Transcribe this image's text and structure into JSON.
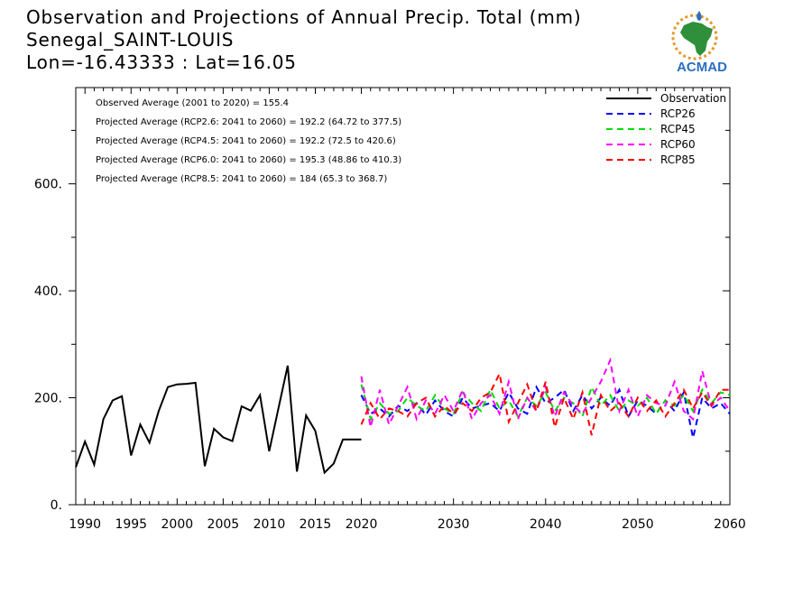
{
  "header": {
    "title_line1": "Observation and Projections of Annual Precip. Total (mm)",
    "title_line2": "Senegal_SAINT-LOUIS",
    "title_line3": "Lon=-16.43333 : Lat=16.05"
  },
  "logo": {
    "text": "ACMAD",
    "icon": "africa-map-icon"
  },
  "chart_data": {
    "type": "line",
    "xlim": [
      1989,
      2060
    ],
    "ylim": [
      0,
      780
    ],
    "xticks": [
      1990,
      1995,
      2000,
      2005,
      2010,
      2015,
      2020,
      2030,
      2040,
      2050,
      2060
    ],
    "yticks": [
      0,
      200,
      400,
      600
    ],
    "ytick_labels": [
      "0.",
      "200.",
      "400.",
      "600."
    ],
    "grid": false,
    "legend_position": "top-right",
    "annotations": [
      "Observed Average (2001 to 2020) = 155.4",
      "Projected Average (RCP2.6: 2041 to 2060) = 192.2 (64.72 to 377.5)",
      "Projected Average (RCP4.5: 2041 to 2060) = 192.2 (72.5 to 420.6)",
      "Projected Average (RCP6.0: 2041 to 2060) = 195.3 (48.86 to 410.3)",
      "Projected Average (RCP8.5: 2041 to 2060) = 184 (65.3 to 368.7)"
    ],
    "series": [
      {
        "name": "Observation",
        "color": "#000000",
        "dash": "solid",
        "x": [
          1989,
          1990,
          1991,
          1992,
          1993,
          1994,
          1995,
          1996,
          1997,
          1998,
          1999,
          2000,
          2001,
          2002,
          2003,
          2004,
          2005,
          2006,
          2007,
          2008,
          2009,
          2010,
          2011,
          2012,
          2013,
          2014,
          2015,
          2016,
          2017,
          2018,
          2019,
          2020
        ],
        "values": [
          70,
          118,
          75,
          160,
          195,
          203,
          92,
          150,
          116,
          175,
          220,
          225,
          226,
          228,
          72,
          142,
          126,
          119,
          184,
          176,
          205,
          100,
          180,
          260,
          62,
          167,
          138,
          60,
          77,
          122,
          122,
          122
        ]
      },
      {
        "name": "RCP26",
        "color": "#0000ff",
        "dash": "dashed",
        "x": [
          2020,
          2021,
          2022,
          2023,
          2024,
          2025,
          2026,
          2027,
          2028,
          2029,
          2030,
          2031,
          2032,
          2033,
          2034,
          2035,
          2036,
          2037,
          2038,
          2039,
          2040,
          2041,
          2042,
          2043,
          2044,
          2045,
          2046,
          2047,
          2048,
          2049,
          2050,
          2051,
          2052,
          2053,
          2054,
          2055,
          2056,
          2057,
          2058,
          2059,
          2060
        ],
        "values": [
          205,
          170,
          180,
          165,
          185,
          175,
          190,
          168,
          195,
          175,
          165,
          200,
          180,
          185,
          190,
          175,
          210,
          180,
          170,
          220,
          190,
          200,
          215,
          175,
          205,
          180,
          200,
          185,
          215,
          165,
          195,
          185,
          170,
          195,
          175,
          210,
          125,
          200,
          180,
          190,
          170
        ]
      },
      {
        "name": "RCP45",
        "color": "#00dd00",
        "dash": "dashed",
        "x": [
          2020,
          2021,
          2022,
          2023,
          2024,
          2025,
          2026,
          2027,
          2028,
          2029,
          2030,
          2031,
          2032,
          2033,
          2034,
          2035,
          2036,
          2037,
          2038,
          2039,
          2040,
          2041,
          2042,
          2043,
          2044,
          2045,
          2046,
          2047,
          2048,
          2049,
          2050,
          2051,
          2052,
          2053,
          2054,
          2055,
          2056,
          2057,
          2058,
          2059,
          2060
        ],
        "values": [
          225,
          160,
          190,
          170,
          175,
          200,
          185,
          175,
          205,
          180,
          170,
          210,
          190,
          175,
          215,
          180,
          195,
          165,
          200,
          185,
          210,
          175,
          200,
          190,
          165,
          220,
          185,
          205,
          175,
          195,
          185,
          200,
          170,
          195,
          185,
          205,
          175,
          215,
          190,
          210,
          205
        ]
      },
      {
        "name": "RCP60",
        "color": "#ff00ff",
        "dash": "dashed",
        "x": [
          2020,
          2021,
          2022,
          2023,
          2024,
          2025,
          2026,
          2027,
          2028,
          2029,
          2030,
          2031,
          2032,
          2033,
          2034,
          2035,
          2036,
          2037,
          2038,
          2039,
          2040,
          2041,
          2042,
          2043,
          2044,
          2045,
          2046,
          2047,
          2048,
          2049,
          2050,
          2051,
          2052,
          2053,
          2054,
          2055,
          2056,
          2057,
          2058,
          2059,
          2060
        ],
        "values": [
          240,
          145,
          215,
          150,
          185,
          220,
          160,
          195,
          170,
          205,
          175,
          215,
          160,
          190,
          205,
          170,
          230,
          160,
          200,
          175,
          220,
          165,
          210,
          185,
          170,
          200,
          230,
          270,
          175,
          215,
          165,
          205,
          190,
          185,
          230,
          175,
          160,
          250,
          185,
          200,
          175
        ]
      },
      {
        "name": "RCP85",
        "color": "#ff0000",
        "dash": "dashed",
        "x": [
          2020,
          2021,
          2022,
          2023,
          2024,
          2025,
          2026,
          2027,
          2028,
          2029,
          2030,
          2031,
          2032,
          2033,
          2034,
          2035,
          2036,
          2037,
          2038,
          2039,
          2040,
          2041,
          2042,
          2043,
          2044,
          2045,
          2046,
          2047,
          2048,
          2049,
          2050,
          2051,
          2052,
          2053,
          2054,
          2055,
          2056,
          2057,
          2058,
          2059,
          2060
        ],
        "values": [
          150,
          190,
          160,
          180,
          175,
          165,
          190,
          200,
          165,
          185,
          170,
          190,
          175,
          200,
          210,
          245,
          155,
          190,
          225,
          175,
          230,
          145,
          200,
          160,
          210,
          130,
          205,
          175,
          190,
          165,
          200,
          175,
          195,
          165,
          190,
          215,
          180,
          210,
          185,
          215,
          215
        ]
      }
    ]
  }
}
